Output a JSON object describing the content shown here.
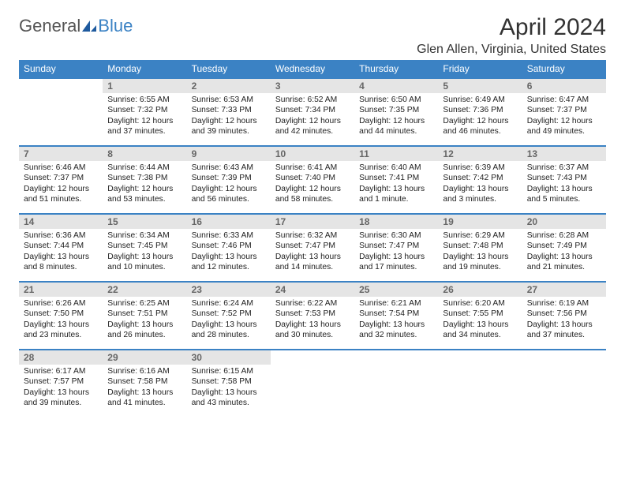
{
  "brand": {
    "part1": "General",
    "part2": "Blue",
    "icon_color": "#1e5a9e"
  },
  "title": "April 2024",
  "location": "Glen Allen, Virginia, United States",
  "colors": {
    "header_bg": "#3b82c4",
    "header_text": "#ffffff",
    "border": "#3b82c4",
    "daynum_bg": "#e5e5e5",
    "daynum_text": "#666666",
    "body_text": "#222222",
    "page_bg": "#ffffff"
  },
  "calendar": {
    "day_headers": [
      "Sunday",
      "Monday",
      "Tuesday",
      "Wednesday",
      "Thursday",
      "Friday",
      "Saturday"
    ],
    "weeks": [
      [
        null,
        {
          "n": "1",
          "sr": "Sunrise: 6:55 AM",
          "ss": "Sunset: 7:32 PM",
          "d1": "Daylight: 12 hours",
          "d2": "and 37 minutes."
        },
        {
          "n": "2",
          "sr": "Sunrise: 6:53 AM",
          "ss": "Sunset: 7:33 PM",
          "d1": "Daylight: 12 hours",
          "d2": "and 39 minutes."
        },
        {
          "n": "3",
          "sr": "Sunrise: 6:52 AM",
          "ss": "Sunset: 7:34 PM",
          "d1": "Daylight: 12 hours",
          "d2": "and 42 minutes."
        },
        {
          "n": "4",
          "sr": "Sunrise: 6:50 AM",
          "ss": "Sunset: 7:35 PM",
          "d1": "Daylight: 12 hours",
          "d2": "and 44 minutes."
        },
        {
          "n": "5",
          "sr": "Sunrise: 6:49 AM",
          "ss": "Sunset: 7:36 PM",
          "d1": "Daylight: 12 hours",
          "d2": "and 46 minutes."
        },
        {
          "n": "6",
          "sr": "Sunrise: 6:47 AM",
          "ss": "Sunset: 7:37 PM",
          "d1": "Daylight: 12 hours",
          "d2": "and 49 minutes."
        }
      ],
      [
        {
          "n": "7",
          "sr": "Sunrise: 6:46 AM",
          "ss": "Sunset: 7:37 PM",
          "d1": "Daylight: 12 hours",
          "d2": "and 51 minutes."
        },
        {
          "n": "8",
          "sr": "Sunrise: 6:44 AM",
          "ss": "Sunset: 7:38 PM",
          "d1": "Daylight: 12 hours",
          "d2": "and 53 minutes."
        },
        {
          "n": "9",
          "sr": "Sunrise: 6:43 AM",
          "ss": "Sunset: 7:39 PM",
          "d1": "Daylight: 12 hours",
          "d2": "and 56 minutes."
        },
        {
          "n": "10",
          "sr": "Sunrise: 6:41 AM",
          "ss": "Sunset: 7:40 PM",
          "d1": "Daylight: 12 hours",
          "d2": "and 58 minutes."
        },
        {
          "n": "11",
          "sr": "Sunrise: 6:40 AM",
          "ss": "Sunset: 7:41 PM",
          "d1": "Daylight: 13 hours",
          "d2": "and 1 minute."
        },
        {
          "n": "12",
          "sr": "Sunrise: 6:39 AM",
          "ss": "Sunset: 7:42 PM",
          "d1": "Daylight: 13 hours",
          "d2": "and 3 minutes."
        },
        {
          "n": "13",
          "sr": "Sunrise: 6:37 AM",
          "ss": "Sunset: 7:43 PM",
          "d1": "Daylight: 13 hours",
          "d2": "and 5 minutes."
        }
      ],
      [
        {
          "n": "14",
          "sr": "Sunrise: 6:36 AM",
          "ss": "Sunset: 7:44 PM",
          "d1": "Daylight: 13 hours",
          "d2": "and 8 minutes."
        },
        {
          "n": "15",
          "sr": "Sunrise: 6:34 AM",
          "ss": "Sunset: 7:45 PM",
          "d1": "Daylight: 13 hours",
          "d2": "and 10 minutes."
        },
        {
          "n": "16",
          "sr": "Sunrise: 6:33 AM",
          "ss": "Sunset: 7:46 PM",
          "d1": "Daylight: 13 hours",
          "d2": "and 12 minutes."
        },
        {
          "n": "17",
          "sr": "Sunrise: 6:32 AM",
          "ss": "Sunset: 7:47 PM",
          "d1": "Daylight: 13 hours",
          "d2": "and 14 minutes."
        },
        {
          "n": "18",
          "sr": "Sunrise: 6:30 AM",
          "ss": "Sunset: 7:47 PM",
          "d1": "Daylight: 13 hours",
          "d2": "and 17 minutes."
        },
        {
          "n": "19",
          "sr": "Sunrise: 6:29 AM",
          "ss": "Sunset: 7:48 PM",
          "d1": "Daylight: 13 hours",
          "d2": "and 19 minutes."
        },
        {
          "n": "20",
          "sr": "Sunrise: 6:28 AM",
          "ss": "Sunset: 7:49 PM",
          "d1": "Daylight: 13 hours",
          "d2": "and 21 minutes."
        }
      ],
      [
        {
          "n": "21",
          "sr": "Sunrise: 6:26 AM",
          "ss": "Sunset: 7:50 PM",
          "d1": "Daylight: 13 hours",
          "d2": "and 23 minutes."
        },
        {
          "n": "22",
          "sr": "Sunrise: 6:25 AM",
          "ss": "Sunset: 7:51 PM",
          "d1": "Daylight: 13 hours",
          "d2": "and 26 minutes."
        },
        {
          "n": "23",
          "sr": "Sunrise: 6:24 AM",
          "ss": "Sunset: 7:52 PM",
          "d1": "Daylight: 13 hours",
          "d2": "and 28 minutes."
        },
        {
          "n": "24",
          "sr": "Sunrise: 6:22 AM",
          "ss": "Sunset: 7:53 PM",
          "d1": "Daylight: 13 hours",
          "d2": "and 30 minutes."
        },
        {
          "n": "25",
          "sr": "Sunrise: 6:21 AM",
          "ss": "Sunset: 7:54 PM",
          "d1": "Daylight: 13 hours",
          "d2": "and 32 minutes."
        },
        {
          "n": "26",
          "sr": "Sunrise: 6:20 AM",
          "ss": "Sunset: 7:55 PM",
          "d1": "Daylight: 13 hours",
          "d2": "and 34 minutes."
        },
        {
          "n": "27",
          "sr": "Sunrise: 6:19 AM",
          "ss": "Sunset: 7:56 PM",
          "d1": "Daylight: 13 hours",
          "d2": "and 37 minutes."
        }
      ],
      [
        {
          "n": "28",
          "sr": "Sunrise: 6:17 AM",
          "ss": "Sunset: 7:57 PM",
          "d1": "Daylight: 13 hours",
          "d2": "and 39 minutes."
        },
        {
          "n": "29",
          "sr": "Sunrise: 6:16 AM",
          "ss": "Sunset: 7:58 PM",
          "d1": "Daylight: 13 hours",
          "d2": "and 41 minutes."
        },
        {
          "n": "30",
          "sr": "Sunrise: 6:15 AM",
          "ss": "Sunset: 7:58 PM",
          "d1": "Daylight: 13 hours",
          "d2": "and 43 minutes."
        },
        null,
        null,
        null,
        null
      ]
    ]
  }
}
